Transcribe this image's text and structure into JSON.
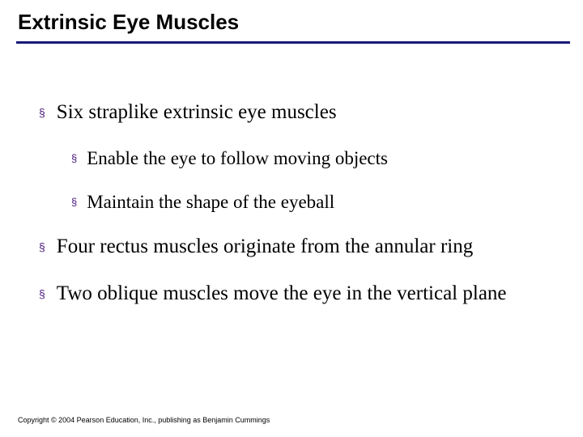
{
  "title": "Extrinsic Eye Muscles",
  "title_fontsize": 26,
  "title_color": "#000000",
  "underline_color": "#19187a",
  "bullet_marker": "§",
  "bullet_marker_color": "#4b1a7c",
  "body_text_color": "#000000",
  "background_color": "#ffffff",
  "l1_fontsize": 25,
  "l2_fontsize": 23,
  "bullets": {
    "b1": "Six straplike extrinsic eye muscles",
    "b1a": "Enable the eye to follow moving objects",
    "b1b": "Maintain the shape of the eyeball",
    "b2": "Four rectus muscles originate from the annular ring",
    "b3": "Two oblique muscles move the eye in the vertical plane"
  },
  "copyright": "Copyright © 2004 Pearson Education, Inc., publishing as Benjamin Cummings",
  "copyright_fontsize": 9
}
